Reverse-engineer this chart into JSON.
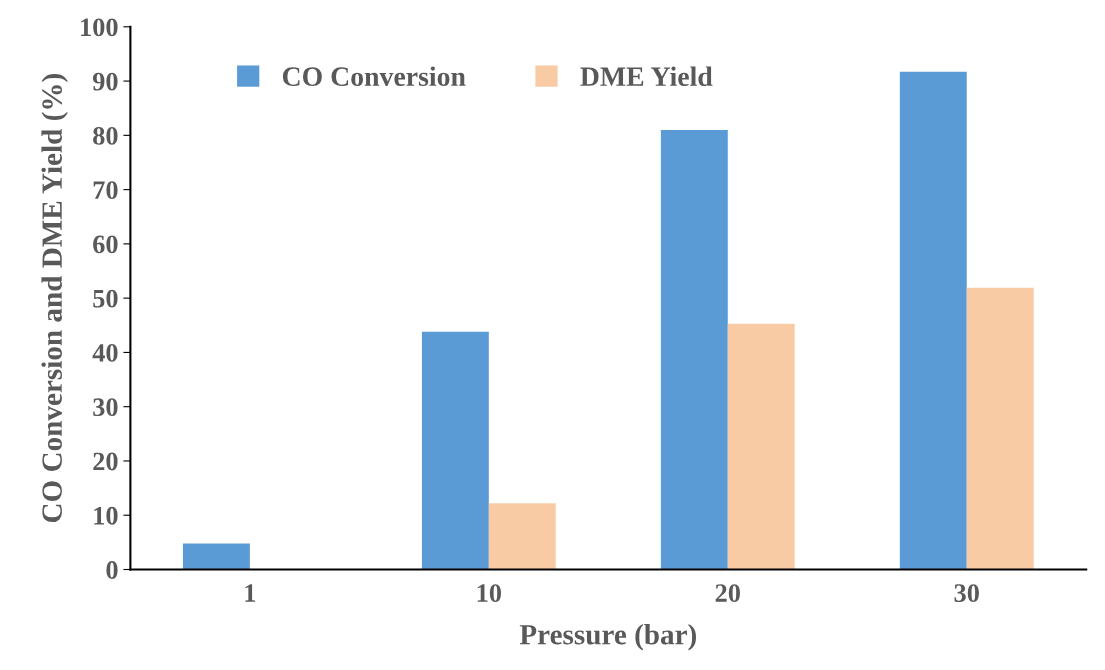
{
  "chart_data": {
    "type": "bar",
    "xlabel": "Pressure (bar)",
    "ylabel": "CO Conversion and DME Yield (%)",
    "categories": [
      "1",
      "10",
      "20",
      "30"
    ],
    "series": [
      {
        "name": "CO Conversion",
        "color": "#5b9bd5",
        "values": [
          4.8,
          43.8,
          81.0,
          91.7
        ]
      },
      {
        "name": "DME Yield",
        "color": "#f8cba4",
        "values": [
          0,
          12.2,
          45.3,
          51.9
        ]
      }
    ],
    "ylim": [
      0,
      100
    ],
    "yticks": [
      0,
      10,
      20,
      30,
      40,
      50,
      60,
      70,
      80,
      90,
      100
    ],
    "grid": false,
    "legend": "top left"
  }
}
